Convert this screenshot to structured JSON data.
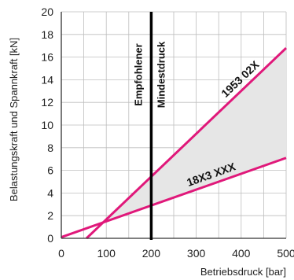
{
  "chart_data": {
    "type": "line",
    "xlabel": "Betriebsdruck [bar]",
    "ylabel": "Belastungskraft und Spannkraft [kN]",
    "xlim": [
      0,
      500
    ],
    "ylim": [
      0,
      20
    ],
    "x_ticks": [
      "0",
      "100",
      "200",
      "300",
      "400",
      "500"
    ],
    "y_ticks": [
      "0",
      "2",
      "4",
      "6",
      "8",
      "10",
      "12",
      "14",
      "16",
      "18",
      "20"
    ],
    "grid": true,
    "series": [
      {
        "name": "1953 02X",
        "x": [
          56,
          500
        ],
        "y": [
          0,
          16.8
        ],
        "color": "#e0187a"
      },
      {
        "name": "18X3 XXX",
        "x": [
          0,
          500
        ],
        "y": [
          0.1,
          7.1
        ],
        "color": "#e0187a"
      }
    ],
    "shaded_region": {
      "between": [
        "1953 02X",
        "18X3 XXX"
      ],
      "x_from": 80,
      "x_to": 500,
      "color": "#e6e6e6"
    },
    "vertical_marker": {
      "x": 200,
      "color": "#000000",
      "labels": [
        "Empfohlener",
        "Mindestdruck"
      ]
    }
  }
}
